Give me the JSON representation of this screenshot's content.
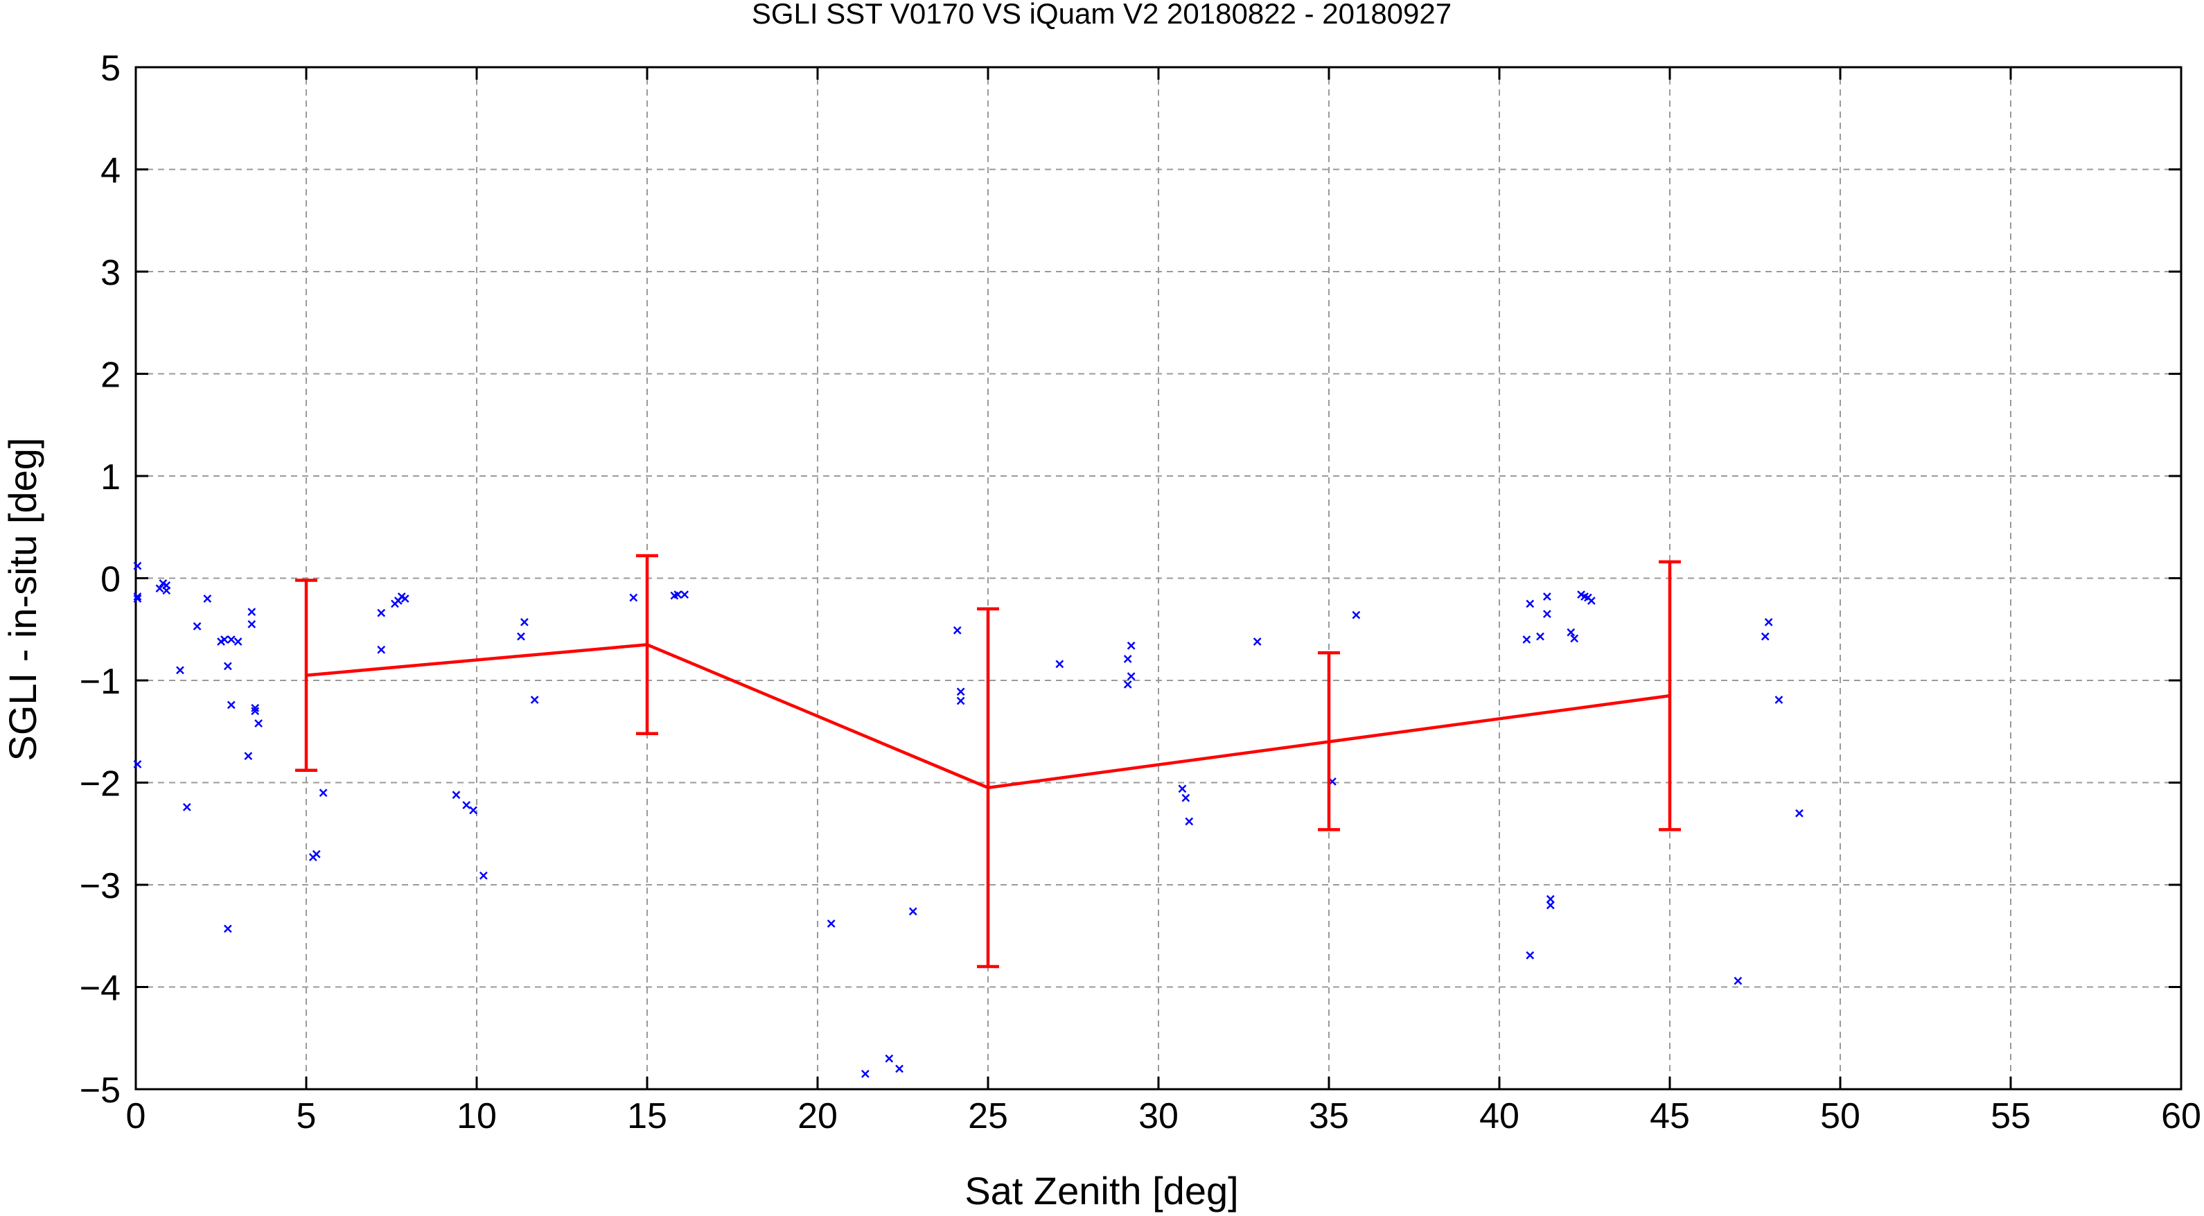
{
  "chart_data": {
    "type": "scatter",
    "title": "SGLI SST V0170 VS iQuam V2 20180822 - 20180927",
    "xlabel": "Sat Zenith [deg]",
    "ylabel": "SGLI - in-situ [deg]",
    "xlim": [
      0,
      60
    ],
    "ylim": [
      -5,
      5
    ],
    "xticks": [
      0,
      5,
      10,
      15,
      20,
      25,
      30,
      35,
      40,
      45,
      50,
      55,
      60
    ],
    "yticks": [
      -5,
      -4,
      -3,
      -2,
      -1,
      0,
      1,
      2,
      3,
      4,
      5
    ],
    "grid": true,
    "colors": {
      "points": "#0000ff",
      "mean_line": "#ff0000"
    },
    "series": [
      {
        "kind": "points",
        "marker": "x",
        "x": [
          0.05,
          0.05,
          0.05,
          0.05,
          0.7,
          0.8,
          0.9,
          0.9,
          1.3,
          1.5,
          1.8,
          2.1,
          2.5,
          2.6,
          2.7,
          2.7,
          2.8,
          2.8,
          3.0,
          3.3,
          3.4,
          3.4,
          3.5,
          3.5,
          3.6,
          5.2,
          5.3,
          5.5,
          7.2,
          7.2,
          7.6,
          7.7,
          7.8,
          7.9,
          9.4,
          9.7,
          9.9,
          10.2,
          11.3,
          11.4,
          11.7,
          14.6,
          15.8,
          15.9,
          16.1,
          20.4,
          21.4,
          22.1,
          22.4,
          22.8,
          24.1,
          24.2,
          24.2,
          27.1,
          29.1,
          29.1,
          29.2,
          29.2,
          30.7,
          30.8,
          30.9,
          32.9,
          35.1,
          35.8,
          40.8,
          40.9,
          40.9,
          41.2,
          41.4,
          41.4,
          41.5,
          41.5,
          42.1,
          42.2,
          42.4,
          42.5,
          42.6,
          42.7,
          47.0,
          47.8,
          47.9,
          48.2,
          48.8
        ],
        "y": [
          0.12,
          -0.18,
          -0.2,
          -1.82,
          -0.1,
          -0.05,
          -0.12,
          -0.07,
          -0.9,
          -2.24,
          -0.47,
          -0.2,
          -0.62,
          -0.6,
          -3.43,
          -0.86,
          -1.24,
          -0.6,
          -0.62,
          -1.74,
          -0.33,
          -0.45,
          -1.27,
          -1.3,
          -1.42,
          -2.73,
          -2.7,
          -2.1,
          -0.7,
          -0.34,
          -0.25,
          -0.22,
          -0.18,
          -0.2,
          -2.12,
          -2.22,
          -2.27,
          -2.91,
          -0.57,
          -0.43,
          -1.19,
          -0.19,
          -0.17,
          -0.16,
          -0.16,
          -3.38,
          -4.85,
          -4.7,
          -4.8,
          -3.26,
          -0.51,
          -1.11,
          -1.2,
          -0.84,
          -1.04,
          -0.79,
          -0.66,
          -0.96,
          -2.06,
          -2.15,
          -2.38,
          -0.62,
          -1.99,
          -0.36,
          -0.6,
          -0.25,
          -3.69,
          -0.57,
          -0.35,
          -0.18,
          -3.2,
          -3.14,
          -0.53,
          -0.59,
          -0.16,
          -0.18,
          -0.19,
          -0.22,
          -3.94,
          -0.57,
          -0.43,
          -1.19,
          -2.3
        ]
      },
      {
        "kind": "mean_errorbar",
        "x": [
          5,
          15,
          25,
          35,
          45
        ],
        "y": [
          -0.95,
          -0.65,
          -2.05,
          -1.6,
          -1.15
        ],
        "ylow": [
          -1.88,
          -1.52,
          -3.8,
          -2.46,
          -2.46
        ],
        "yhigh": [
          -0.02,
          0.22,
          -0.3,
          -0.73,
          0.16
        ]
      }
    ]
  }
}
